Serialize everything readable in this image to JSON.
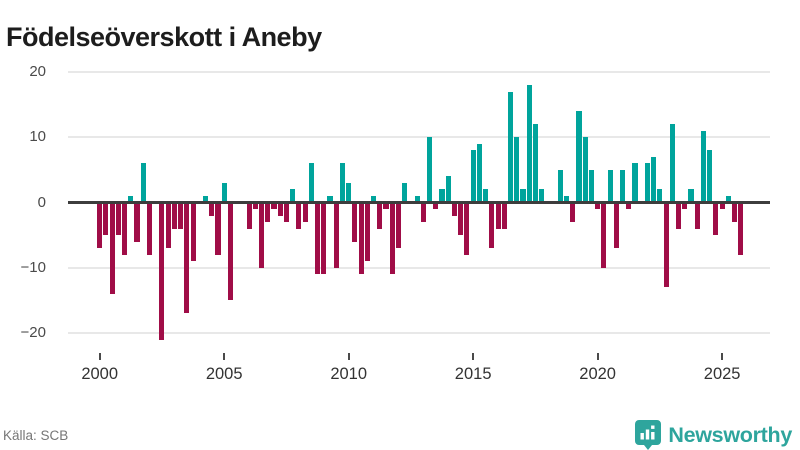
{
  "header": {
    "title": "Födelseöverskott i Aneby"
  },
  "footer": {
    "source": "Källa: SCB",
    "brand": "Newsworthy",
    "brand_color": "#2ea59d",
    "logo_icon": "newsworthy-pin-barchart-icon"
  },
  "chart_data": {
    "type": "bar",
    "title": "Födelseöverskott i Aneby",
    "frequency": "quarterly",
    "start": "2000-Q1",
    "end": "2025-Q4",
    "values": [
      -7,
      -5,
      -14,
      -5,
      -8,
      1,
      -6,
      6,
      -8,
      0,
      -21,
      -7,
      -4,
      -4,
      -17,
      -9,
      0,
      1,
      -2,
      -8,
      3,
      -15,
      0,
      0,
      -4,
      -1,
      -10,
      -3,
      -1,
      -2,
      -3,
      2,
      -4,
      -3,
      6,
      -11,
      -11,
      1,
      -10,
      6,
      3,
      -6,
      -11,
      -9,
      1,
      -4,
      -1,
      -11,
      -7,
      3,
      0,
      1,
      -3,
      10,
      -1,
      2,
      4,
      -2,
      -5,
      -8,
      8,
      9,
      2,
      -7,
      -4,
      -4,
      17,
      10,
      2,
      18,
      12,
      2,
      0,
      0,
      5,
      1,
      -3,
      14,
      10,
      5,
      -1,
      -10,
      5,
      -7,
      5,
      -1,
      6,
      0,
      6,
      7,
      2,
      -13,
      12,
      -4,
      -1,
      2,
      -4,
      11,
      8,
      -5,
      -1,
      1,
      -3,
      -8
    ],
    "xticks": [
      "2000",
      "2005",
      "2010",
      "2015",
      "2020",
      "2025"
    ],
    "yticks": [
      "20",
      "10",
      "0",
      "−10",
      "−20"
    ],
    "ytick_values": [
      20,
      10,
      0,
      -10,
      -20
    ],
    "ylim": [
      -22,
      21
    ],
    "grid": "horizontal",
    "legend": "none",
    "positive_color": "#00a49c",
    "negative_color": "#a00d47"
  }
}
